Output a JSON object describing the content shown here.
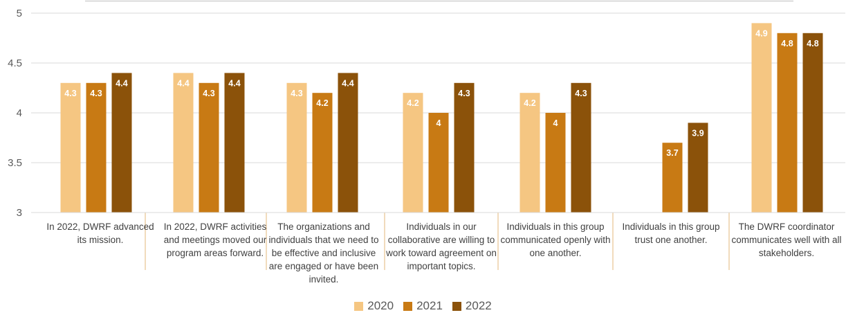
{
  "chart_data": {
    "type": "bar",
    "categories": [
      "In 2022, DWRF advanced its mission.",
      "In 2022, DWRF activities and meetings moved our program areas forward.",
      "The organizations and individuals that we need to be effective and inclusive are engaged or have been invited.",
      "Individuals in our collaborative are willing to work toward agreement on important topics.",
      "Individuals in this group communicated openly with one another.",
      "Individuals in this group trust one another.",
      "The DWRF coordinator communicates well with all stakeholders."
    ],
    "series": [
      {
        "name": "2020",
        "color": "#F5C682",
        "values": [
          4.3,
          4.4,
          4.3,
          4.2,
          4.2,
          null,
          4.9
        ]
      },
      {
        "name": "2021",
        "color": "#C87A14",
        "values": [
          4.3,
          4.3,
          4.2,
          4.0,
          4.0,
          3.7,
          4.8
        ]
      },
      {
        "name": "2022",
        "color": "#8B520A",
        "values": [
          4.4,
          4.4,
          4.4,
          4.3,
          4.3,
          3.9,
          4.8
        ]
      }
    ],
    "labels": [
      [
        "4.3",
        "4.4",
        "4.3",
        "4.2",
        "4.2",
        null,
        "4.9"
      ],
      [
        "4.3",
        "4.3",
        "4.2",
        "4",
        "4",
        "3.7",
        "4.8"
      ],
      [
        "4.4",
        "4.4",
        "4.4",
        "4.3",
        "4.3",
        "3.9",
        "4.8"
      ]
    ],
    "y_ticks": [
      "3",
      "3.5",
      "4",
      "4.5",
      "5"
    ],
    "ylim": [
      3,
      5
    ],
    "grid": true,
    "legend_position": "bottom",
    "title": "",
    "xlabel": "",
    "ylabel": ""
  }
}
